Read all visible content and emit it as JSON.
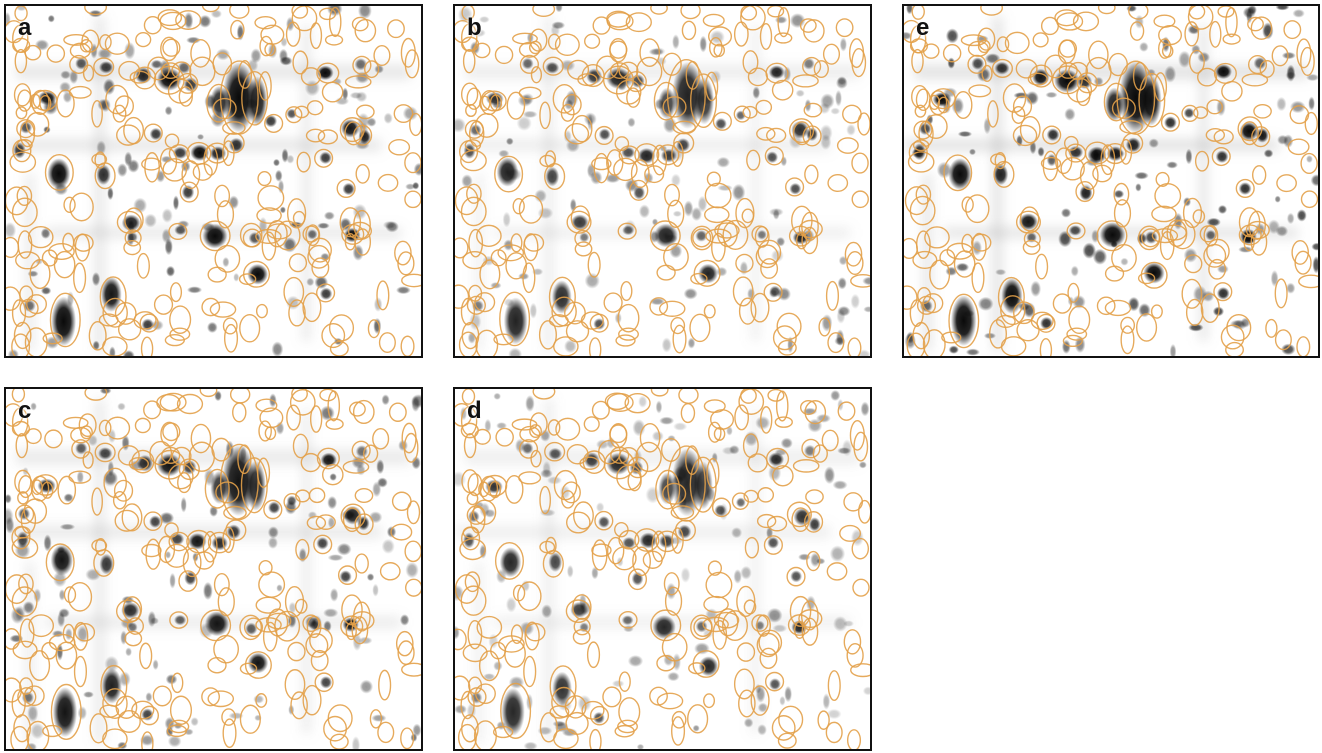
{
  "panels": [
    {
      "id": "a",
      "label": "a",
      "contrast": 1.0
    },
    {
      "id": "b",
      "label": "b",
      "contrast": 0.75
    },
    {
      "id": "e",
      "label": "e",
      "contrast": 1.15
    },
    {
      "id": "c",
      "label": "c",
      "contrast": 0.9
    },
    {
      "id": "d",
      "label": "d",
      "contrast": 0.7
    }
  ],
  "colors": {
    "outline": "#e3a14a",
    "spot": "#0a0a0a",
    "frame": "#111111",
    "background": "#ffffff"
  }
}
